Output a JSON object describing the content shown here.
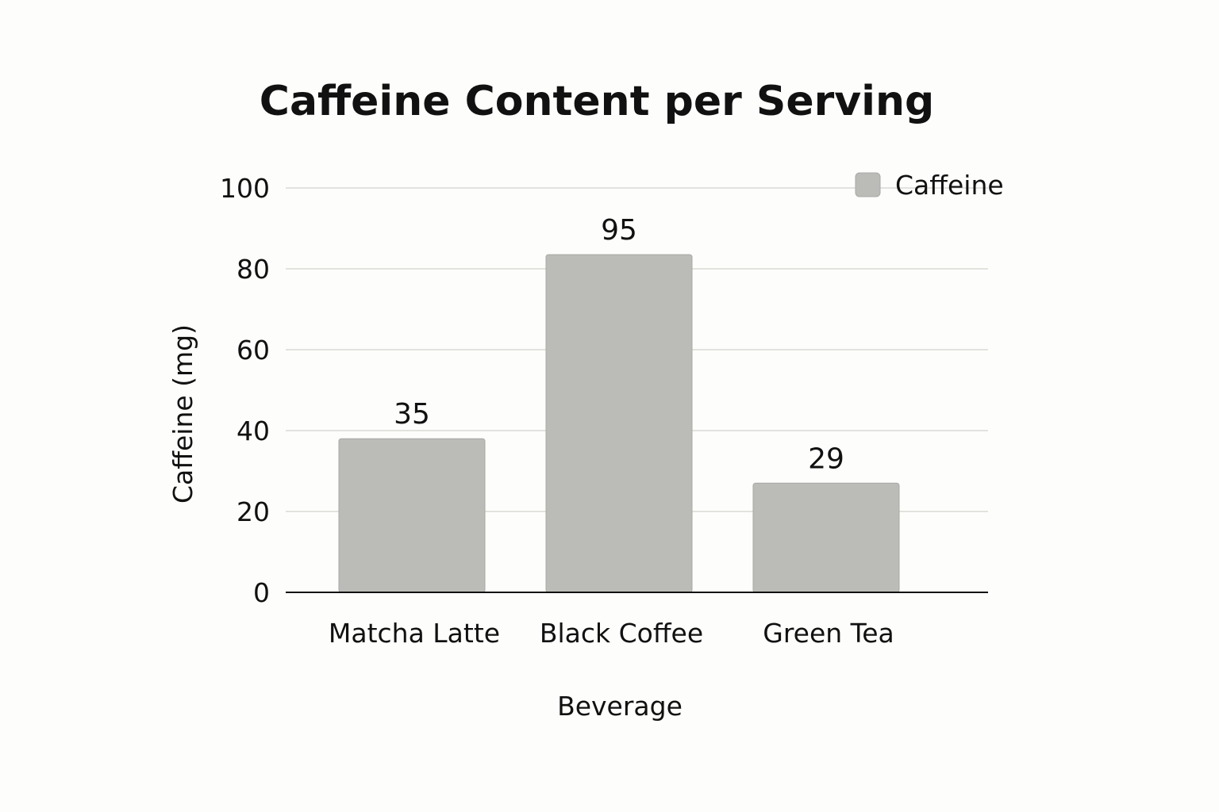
{
  "chart_data": {
    "type": "bar",
    "title": "Caffeine Content per Serving",
    "xlabel": "Beverage",
    "ylabel": "Caffeine (mg)",
    "categories": [
      "Matcha Latte",
      "Black Coffee",
      "Green Tea"
    ],
    "series": [
      {
        "name": "Caffeine",
        "values": [
          35,
          95,
          29
        ],
        "color": "#bbbbb8"
      }
    ],
    "bar_display_levels": [
      38,
      83.5,
      27
    ],
    "ylim": [
      0,
      100
    ],
    "yticks": [
      0,
      20,
      40,
      60,
      80,
      100
    ],
    "grid": true,
    "legend": "top-right"
  }
}
